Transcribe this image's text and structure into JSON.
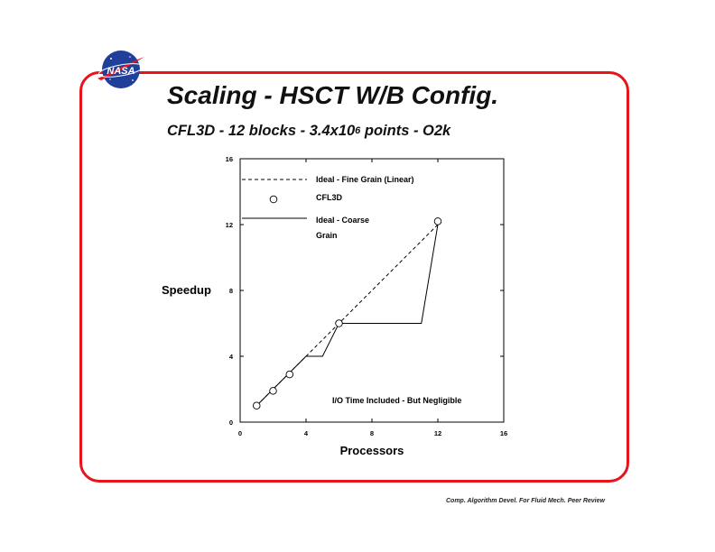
{
  "slide": {
    "title": "Scaling - HSCT W/B Config.",
    "subtitle_prefix": "CFL3D - 12 blocks - 3.4x10",
    "subtitle_sup": "6",
    "subtitle_suffix": " points - O2k",
    "footer": "Comp. Algorithm Devel. For Fluid Mech. Peer Review",
    "logo_text": "NASA",
    "frame_color": "#e8141b"
  },
  "chart_data": {
    "type": "line",
    "title": "",
    "xlabel": "Processors",
    "ylabel": "Speedup",
    "xlim": [
      0,
      16
    ],
    "ylim": [
      0,
      16
    ],
    "x_ticks": [
      0,
      4,
      8,
      12,
      16
    ],
    "y_ticks": [
      0,
      4,
      8,
      12,
      16
    ],
    "x_tick_labels": [
      "0",
      "4",
      "8",
      "12",
      "16"
    ],
    "y_tick_labels": [
      "0",
      "4",
      "8",
      "12",
      "16"
    ],
    "grid": false,
    "legend_position": "top",
    "series": [
      {
        "name": "Ideal - Fine Grain (Linear)",
        "style": "dashed",
        "points": [
          [
            1,
            1
          ],
          [
            12,
            12
          ]
        ]
      },
      {
        "name": "CFL3D",
        "style": "markers",
        "points": [
          [
            1,
            1
          ],
          [
            2,
            1.9
          ],
          [
            3,
            2.9
          ],
          [
            6,
            6
          ],
          [
            12,
            12.2
          ]
        ]
      },
      {
        "name": "Ideal - Coarse Grain",
        "style": "solid",
        "points": [
          [
            1,
            1
          ],
          [
            4,
            4
          ],
          [
            5,
            4
          ],
          [
            6,
            6
          ],
          [
            11,
            6
          ],
          [
            12,
            12
          ]
        ]
      }
    ],
    "legend": {
      "ideal_fine": "Ideal - Fine Grain (Linear)",
      "cfl3d": "CFL3D",
      "ideal_coarse_line1": "Ideal - Coarse",
      "ideal_coarse_line2": "Grain"
    },
    "annotations": [
      "I/O Time Included - But Negligible"
    ]
  }
}
